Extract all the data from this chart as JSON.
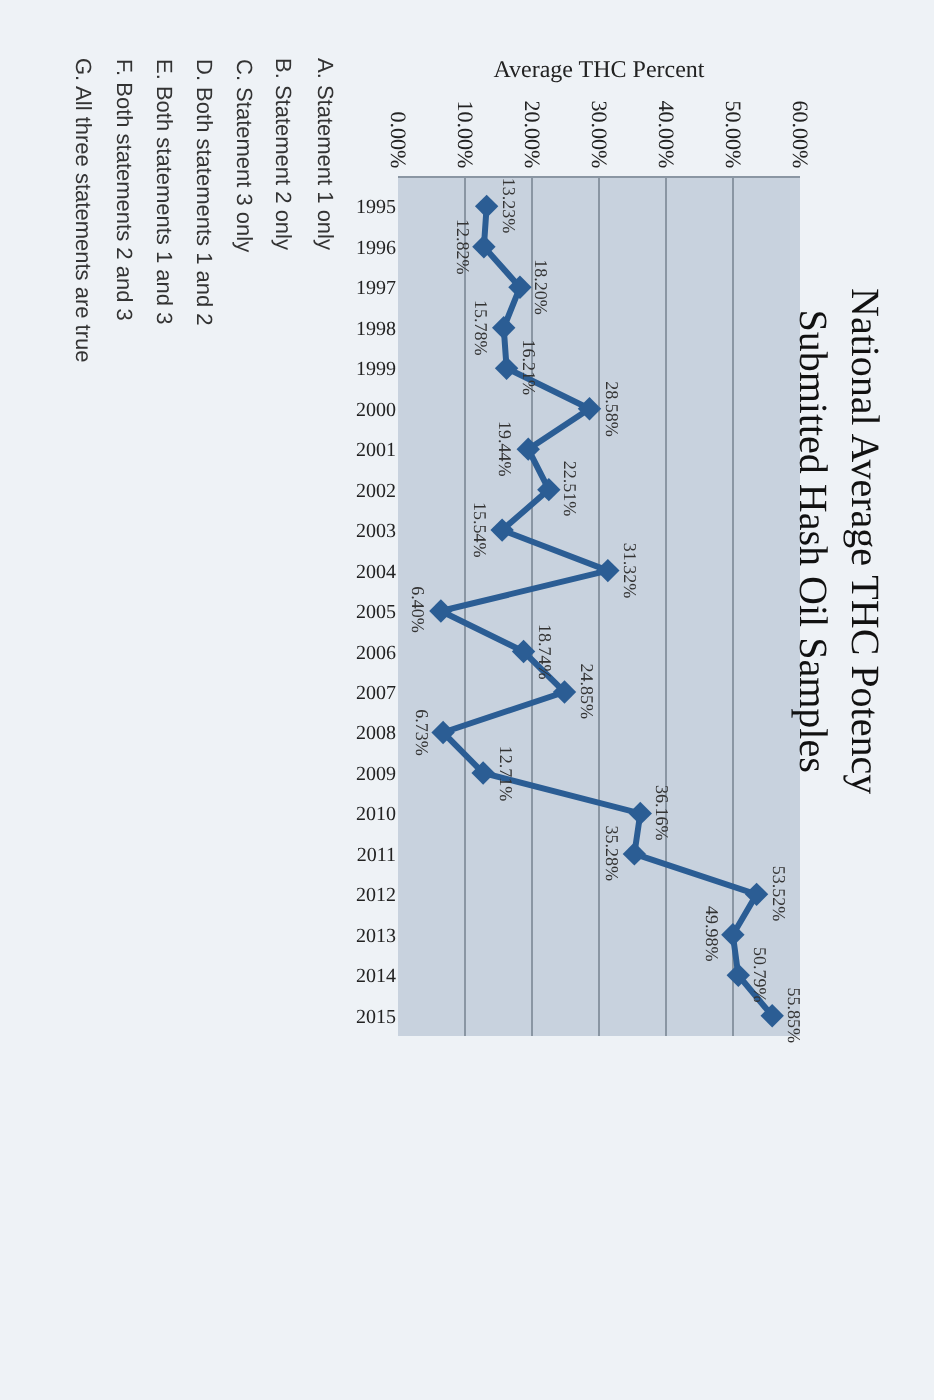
{
  "chart_data": {
    "type": "line",
    "orientation": "horizontal",
    "title": "National Average THC Potency\nSubmitted Hash Oil Samples",
    "xlabel": "Average THC Percent",
    "categories": [
      "1995",
      "1996",
      "1997",
      "1998",
      "1999",
      "2000",
      "2001",
      "2002",
      "2003",
      "2004",
      "2005",
      "2006",
      "2007",
      "2008",
      "2009",
      "2010",
      "2011",
      "2012",
      "2013",
      "2014",
      "2015"
    ],
    "series": [
      {
        "color": "#2b5d94",
        "values": [
          13.23,
          12.82,
          18.2,
          15.78,
          16.21,
          28.58,
          19.44,
          22.51,
          15.54,
          31.32,
          6.4,
          18.74,
          24.85,
          6.73,
          12.71,
          36.16,
          35.28,
          53.52,
          49.98,
          50.79,
          55.85
        ],
        "value_labels": [
          "13.23%",
          "12.82%",
          "18.20%",
          "15.78%",
          "16.21%",
          "28.58%",
          "19.44%",
          "22.51%",
          "15.54%",
          "31.32%",
          "6.40%",
          "18.74%",
          "24.85%",
          "6.73%",
          "12.71%",
          "36.16%",
          "35.28%",
          "53.52%",
          "49.98%",
          "50.79%",
          "55.85%"
        ]
      }
    ],
    "xlim": [
      0,
      60
    ],
    "xticks": [
      {
        "value": 0,
        "label": "0.00%"
      },
      {
        "value": 10,
        "label": "10.00%"
      },
      {
        "value": 20,
        "label": "20.00%"
      },
      {
        "value": 30,
        "label": "30.00%"
      },
      {
        "value": 40,
        "label": "40.00%"
      },
      {
        "value": 50,
        "label": "50.00%"
      },
      {
        "value": 60,
        "label": "60.00%"
      }
    ],
    "grid": "x",
    "marker": "diamond",
    "line_style": "solid",
    "annotations": [
      "A. Statement 1 only",
      "B. Statement 2 only",
      "C. Statement 3 only",
      "D. Both statements 1 and 2",
      "E. Both statements 1 and 3",
      "F. Both statements 2 and 3",
      "G. All three statements are true"
    ]
  }
}
